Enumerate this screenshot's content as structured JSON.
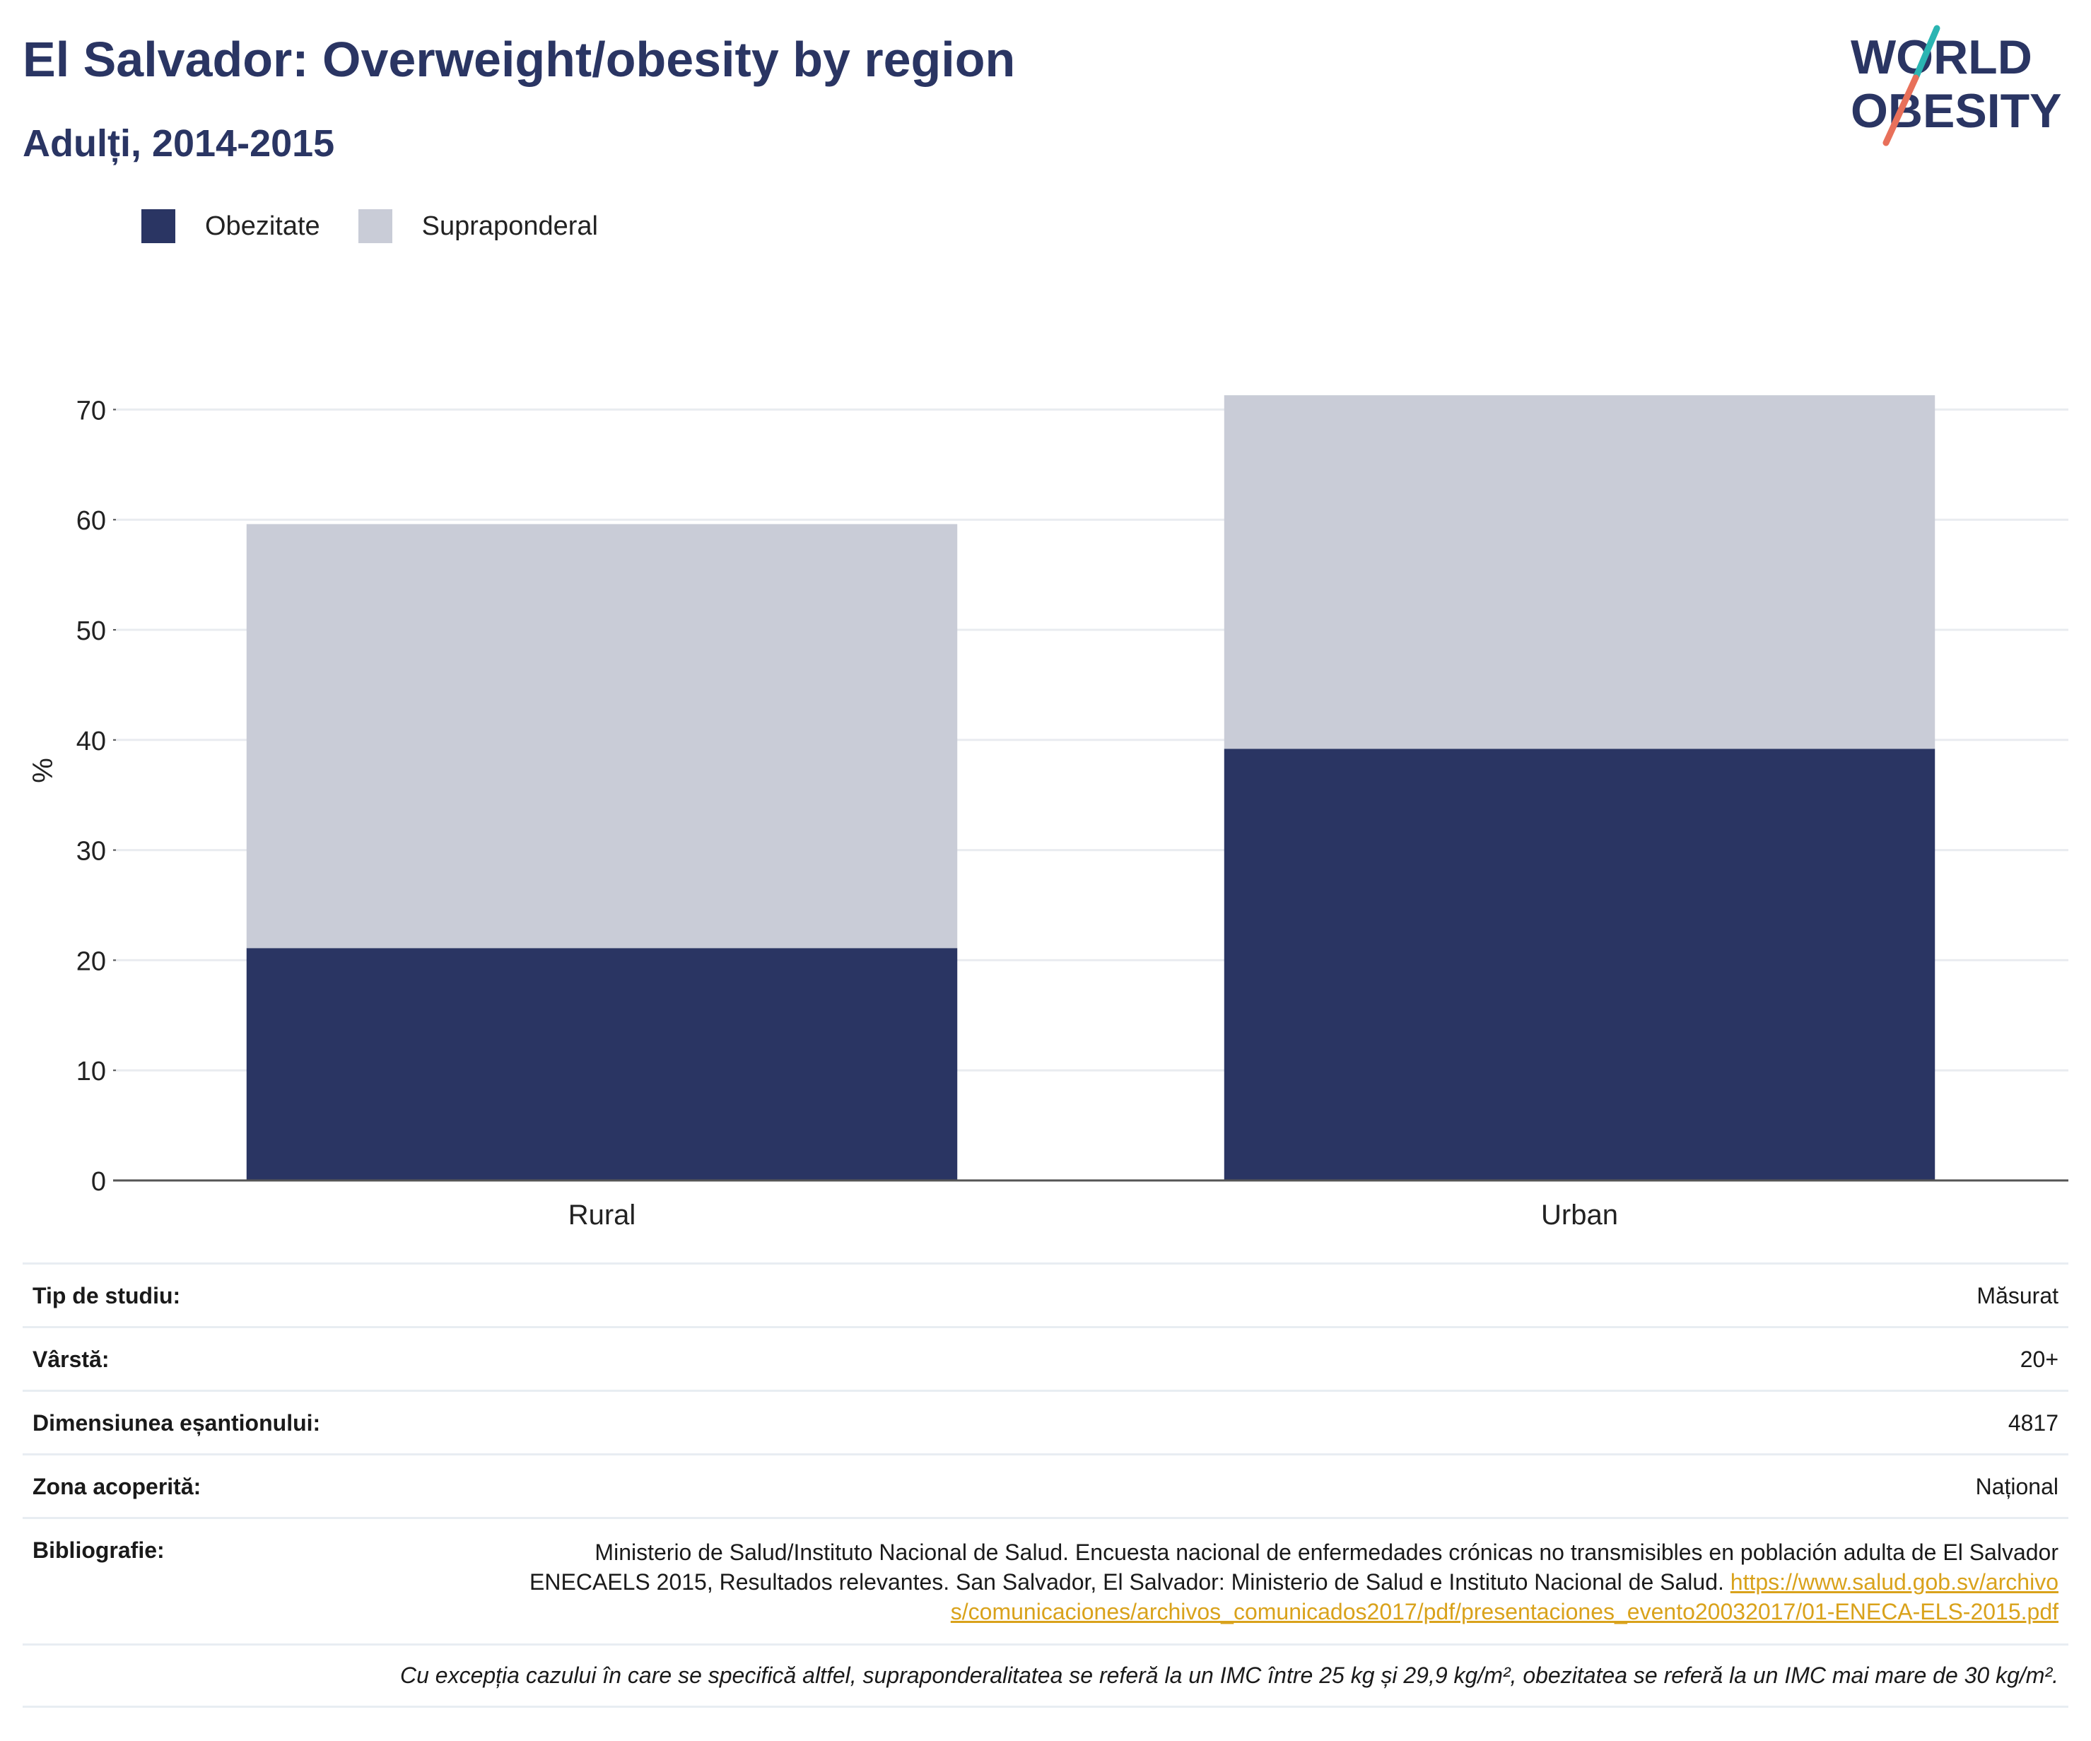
{
  "header": {
    "title": "El Salvador: Overweight/obesity by region",
    "subtitle": "Adulți, 2014-2015",
    "logo_line1": "WORLD",
    "logo_line2": "OBESITY"
  },
  "colors": {
    "obesity": "#2a3563",
    "overweight": "#c9ccd7",
    "title": "#2a3563",
    "link": "#d9a21b",
    "logo_teal": "#2bb5b2",
    "logo_coral": "#e8705a"
  },
  "legend": [
    {
      "label": "Obezitate",
      "color": "#2a3563"
    },
    {
      "label": "Supraponderal",
      "color": "#c9ccd7"
    }
  ],
  "chart_data": {
    "type": "bar",
    "stacked": true,
    "categories": [
      "Rural",
      "Urban"
    ],
    "series": [
      {
        "name": "Obezitate",
        "values": [
          21.1,
          39.2
        ]
      },
      {
        "name": "Supraponderal",
        "values": [
          38.5,
          32.1
        ]
      }
    ],
    "ylabel": "%",
    "ylim": [
      0,
      75
    ],
    "yticks": [
      0,
      10,
      20,
      30,
      40,
      50,
      60,
      70
    ],
    "grid": true,
    "legend_position": "top-left"
  },
  "info": {
    "rows": [
      {
        "key": "Tip de studiu:",
        "value": "Măsurat"
      },
      {
        "key": "Vârstă:",
        "value": "20+"
      },
      {
        "key": "Dimensiunea eșantionului:",
        "value": "4817"
      },
      {
        "key": "Zona acoperită:",
        "value": "Național"
      }
    ],
    "bibliography_key": "Bibliografie:",
    "bibliography_text": "Ministerio de Salud/Instituto Nacional de Salud. Encuesta nacional de enfermedades crónicas no transmisibles en población adulta de El Salvador ENECAELS 2015, Resultados relevantes. San Salvador, El Salvador: Ministerio de Salud e Instituto Nacional de Salud.",
    "bibliography_link": "https://www.salud.gob.sv/archivos/comunicaciones/archivos_comunicados2017/pdf/presentaciones_evento20032017/01-ENECA-ELS-2015.pdf",
    "note": "Cu excepția cazului în care se specifică altfel, supraponderalitatea se referă la un IMC între 25 kg și 29,9 kg/m², obezitatea se referă la un IMC mai mare de 30 kg/m²."
  }
}
